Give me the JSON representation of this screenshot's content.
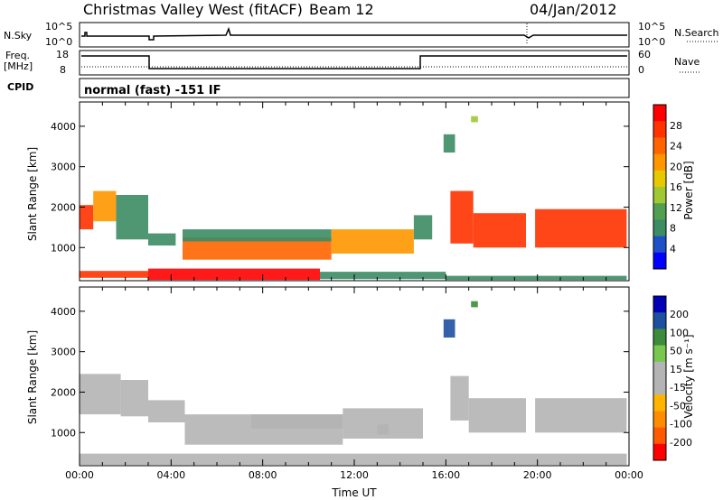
{
  "header": {
    "title": "Christmas Valley West (fitACF)",
    "beam": "Beam 12",
    "date": "04/Jan/2012"
  },
  "summary": {
    "nsky_label": "N.Sky",
    "nsearch_label": "N.Search",
    "nsky_ticks": [
      "10^5",
      "10^0"
    ],
    "nsearch_ticks": [
      "10^5",
      "10^0"
    ],
    "freq_label_line1": "Freq.",
    "freq_label_line2": "[MHz]",
    "freq_ticks": [
      "18",
      "8"
    ],
    "nave_label": "Nave",
    "nave_ticks": [
      "60",
      "0"
    ],
    "cpid_label": "CPID",
    "cpid_text": "normal (fast) -151 IF"
  },
  "chart_data": [
    {
      "type": "heatmap",
      "name": "power-panel",
      "ylabel": "Slant Range [km]",
      "ylim": [
        180,
        4600
      ],
      "yticks": [
        "1000",
        "2000",
        "3000",
        "4000"
      ],
      "xlim": [
        0,
        24
      ],
      "colorbar": {
        "label": "Power [dB]",
        "ticks": [
          "4",
          "8",
          "12",
          "16",
          "20",
          "24",
          "28"
        ],
        "colors": [
          "#0000ff",
          "#2050c8",
          "#3c8c64",
          "#50a050",
          "#9fc832",
          "#e8c800",
          "#ff9600",
          "#ff6400",
          "#ff3200",
          "#ff0000"
        ]
      },
      "bands": [
        {
          "t0": 0.0,
          "t1": 0.6,
          "r0": 1450,
          "r1": 2050,
          "level": 26
        },
        {
          "t0": 0.6,
          "t1": 1.6,
          "r0": 1650,
          "r1": 2400,
          "level": 18
        },
        {
          "t0": 1.6,
          "t1": 3.0,
          "r0": 1200,
          "r1": 2300,
          "level": 6
        },
        {
          "t0": 3.0,
          "t1": 4.2,
          "r0": 1050,
          "r1": 1350,
          "level": 6
        },
        {
          "t0": 4.5,
          "t1": 11.0,
          "r0": 700,
          "r1": 1250,
          "level": 22
        },
        {
          "t0": 4.5,
          "t1": 11.0,
          "r0": 1150,
          "r1": 1450,
          "level": 8
        },
        {
          "t0": 11.0,
          "t1": 14.6,
          "r0": 850,
          "r1": 1450,
          "level": 20
        },
        {
          "t0": 14.6,
          "t1": 15.4,
          "r0": 1200,
          "r1": 1800,
          "level": 8
        },
        {
          "t0": 16.2,
          "t1": 17.2,
          "r0": 1100,
          "r1": 2400,
          "level": 26
        },
        {
          "t0": 17.2,
          "t1": 19.5,
          "r0": 1000,
          "r1": 1850,
          "level": 26
        },
        {
          "t0": 19.9,
          "t1": 23.9,
          "r0": 1000,
          "r1": 1950,
          "level": 26
        },
        {
          "t0": 0.0,
          "t1": 3.0,
          "r0": 250,
          "r1": 420,
          "level": 24
        },
        {
          "t0": 3.0,
          "t1": 10.5,
          "r0": 200,
          "r1": 480,
          "level": 28
        },
        {
          "t0": 10.5,
          "t1": 16.0,
          "r0": 220,
          "r1": 400,
          "level": 8
        },
        {
          "t0": 16.0,
          "t1": 23.9,
          "r0": 200,
          "r1": 300,
          "level": 6
        },
        {
          "t0": 15.9,
          "t1": 16.4,
          "r0": 3350,
          "r1": 3800,
          "level": 6
        },
        {
          "t0": 17.1,
          "t1": 17.4,
          "r0": 4100,
          "r1": 4250,
          "level": 14
        }
      ]
    },
    {
      "type": "heatmap",
      "name": "velocity-panel",
      "ylabel": "Slant Range [km]",
      "ylim": [
        180,
        4600
      ],
      "yticks": [
        "1000",
        "2000",
        "3000",
        "4000"
      ],
      "xlim": [
        0,
        24
      ],
      "xticks": [
        "00:00",
        "04:00",
        "08:00",
        "12:00",
        "16:00",
        "20:00",
        "00:00"
      ],
      "xlabel": "Time UT",
      "colorbar": {
        "label": "Velocity [m s⁻¹]",
        "ticks": [
          "200",
          "100",
          "50",
          "15",
          "-15",
          "-50",
          "-100",
          "-200"
        ],
        "colors": [
          "#0000b4",
          "#1e50a0",
          "#3c8c3c",
          "#78c850",
          "#b4b4b4",
          "#b4b4b4",
          "#ffb400",
          "#ff8c00",
          "#ff5a00",
          "#ff0000"
        ]
      },
      "bands": [
        {
          "t0": 0.0,
          "t1": 1.8,
          "r0": 1450,
          "r1": 2450,
          "level": 0
        },
        {
          "t0": 1.8,
          "t1": 3.0,
          "r0": 1400,
          "r1": 2300,
          "level": 0
        },
        {
          "t0": 3.0,
          "t1": 4.6,
          "r0": 1250,
          "r1": 1800,
          "level": -40
        },
        {
          "t0": 4.6,
          "t1": 11.5,
          "r0": 700,
          "r1": 1450,
          "level": 0
        },
        {
          "t0": 7.5,
          "t1": 11.5,
          "r0": 1100,
          "r1": 1450,
          "level": -40
        },
        {
          "t0": 11.5,
          "t1": 15.0,
          "r0": 850,
          "r1": 1600,
          "level": -40
        },
        {
          "t0": 13.0,
          "t1": 13.5,
          "r0": 950,
          "r1": 1200,
          "level": 30
        },
        {
          "t0": 16.2,
          "t1": 17.0,
          "r0": 1300,
          "r1": 2400,
          "level": 0
        },
        {
          "t0": 17.0,
          "t1": 19.5,
          "r0": 1000,
          "r1": 1850,
          "level": 0
        },
        {
          "t0": 19.9,
          "t1": 23.9,
          "r0": 1000,
          "r1": 1850,
          "level": 0
        },
        {
          "t0": 0.0,
          "t1": 23.9,
          "r0": 200,
          "r1": 480,
          "level": -40
        },
        {
          "t0": 15.9,
          "t1": 16.4,
          "r0": 3350,
          "r1": 3800,
          "level": 200
        },
        {
          "t0": 17.1,
          "t1": 17.4,
          "r0": 4100,
          "r1": 4250,
          "level": 150
        }
      ]
    }
  ]
}
